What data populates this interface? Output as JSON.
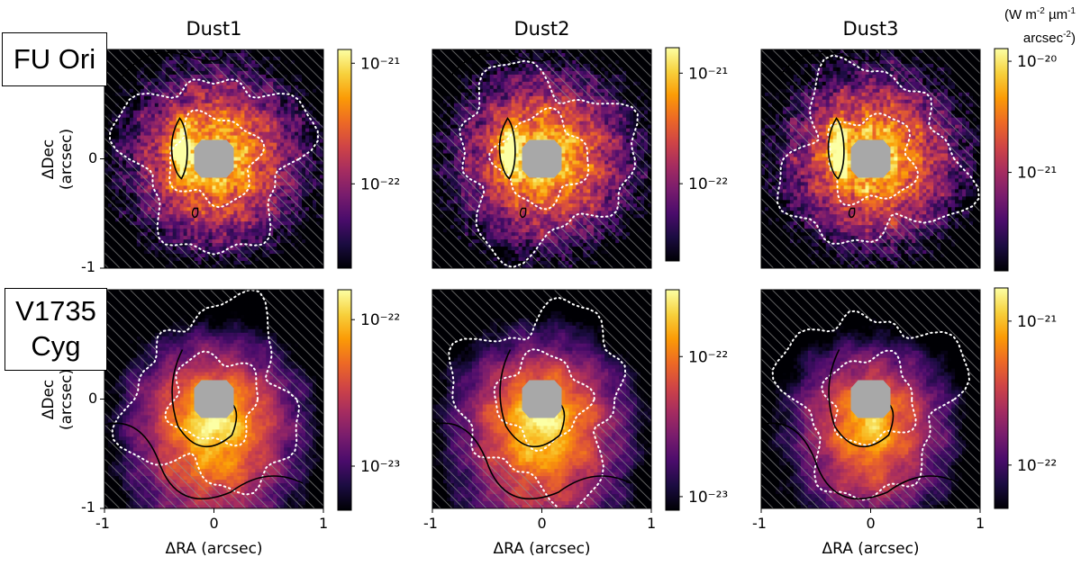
{
  "figure": {
    "units_label": {
      "line1": "(W m",
      "exp1": "-2",
      "mid1": " µm",
      "exp2": "-1",
      "line2": "arcsec",
      "exp3": "-2",
      "close": ")"
    },
    "row_labels": [
      {
        "line1": "FU Ori",
        "line2": ""
      },
      {
        "line1": "V1735",
        "line2": "Cyg"
      }
    ]
  },
  "colors": {
    "colormap": [
      "#000004",
      "#1b0c41",
      "#4a0c6b",
      "#781c6d",
      "#a52c60",
      "#cf4446",
      "#ed6925",
      "#fb9b06",
      "#f7d13d",
      "#fcffa4"
    ],
    "mask": "#a8a8a8",
    "hatch": "#8c8c8c"
  },
  "chart_data": [
    {
      "type": "heatmap",
      "row": 0,
      "col": 0,
      "title": "Dust1",
      "xlabel": "",
      "ylabel": "ΔDec\n(arcsec)",
      "xlim": [
        -1,
        1
      ],
      "ylim": [
        -1,
        1
      ],
      "xticks": [],
      "yticks": [
        "-1",
        "0"
      ],
      "colorbar": {
        "scale": "log",
        "range": [
          2e-23,
          1.3e-21
        ],
        "ticks": [
          {
            "value": 1e-21,
            "label": "10⁻²¹"
          },
          {
            "value": 1e-22,
            "label": "10⁻²²"
          }
        ]
      }
    },
    {
      "type": "heatmap",
      "row": 0,
      "col": 1,
      "title": "Dust2",
      "xlabel": "",
      "ylabel": "",
      "xlim": [
        -1,
        1
      ],
      "ylim": [
        -1,
        1
      ],
      "xticks": [],
      "yticks": [],
      "colorbar": {
        "scale": "log",
        "range": [
          2e-23,
          1.7e-21
        ],
        "ticks": [
          {
            "value": 1e-21,
            "label": "10⁻²¹"
          },
          {
            "value": 1e-22,
            "label": "10⁻²²"
          }
        ]
      }
    },
    {
      "type": "heatmap",
      "row": 0,
      "col": 2,
      "title": "Dust3",
      "xlabel": "",
      "ylabel": "",
      "xlim": [
        -1,
        1
      ],
      "ylim": [
        -1,
        1
      ],
      "xticks": [],
      "yticks": [],
      "colorbar": {
        "scale": "log",
        "range": [
          1.3e-22,
          1.3e-20
        ],
        "ticks": [
          {
            "value": 1e-20,
            "label": "10⁻²⁰"
          },
          {
            "value": 1e-21,
            "label": "10⁻²¹"
          }
        ]
      }
    },
    {
      "type": "heatmap",
      "row": 1,
      "col": 0,
      "title": "",
      "xlabel": "ΔRA (arcsec)",
      "ylabel": "ΔDec\n(arcsec)",
      "xlim": [
        -1,
        1
      ],
      "ylim": [
        -1,
        1
      ],
      "xticks": [
        "-1",
        "0",
        "1"
      ],
      "yticks": [
        "-1",
        "0"
      ],
      "colorbar": {
        "scale": "log",
        "range": [
          5e-24,
          1.6e-22
        ],
        "ticks": [
          {
            "value": 1e-22,
            "label": "10⁻²²"
          },
          {
            "value": 1e-23,
            "label": "10⁻²³"
          }
        ]
      }
    },
    {
      "type": "heatmap",
      "row": 1,
      "col": 1,
      "title": "",
      "xlabel": "ΔRA (arcsec)",
      "ylabel": "",
      "xlim": [
        -1,
        1
      ],
      "ylim": [
        -1,
        1
      ],
      "xticks": [
        "-1",
        "0",
        "1"
      ],
      "yticks": [],
      "colorbar": {
        "scale": "log",
        "range": [
          8e-24,
          3e-22
        ],
        "ticks": [
          {
            "value": 1e-22,
            "label": "10⁻²²"
          },
          {
            "value": 1e-23,
            "label": "10⁻²³"
          }
        ]
      }
    },
    {
      "type": "heatmap",
      "row": 1,
      "col": 2,
      "title": "",
      "xlabel": "ΔRA (arcsec)",
      "ylabel": "",
      "xlim": [
        -1,
        1
      ],
      "ylim": [
        -1,
        1
      ],
      "xticks": [
        "-1",
        "0",
        "1"
      ],
      "yticks": [],
      "colorbar": {
        "scale": "log",
        "range": [
          5e-23,
          1.7e-21
        ],
        "ticks": [
          {
            "value": 1e-21,
            "label": "10⁻²¹"
          },
          {
            "value": 1e-22,
            "label": "10⁻²²"
          }
        ]
      }
    }
  ]
}
